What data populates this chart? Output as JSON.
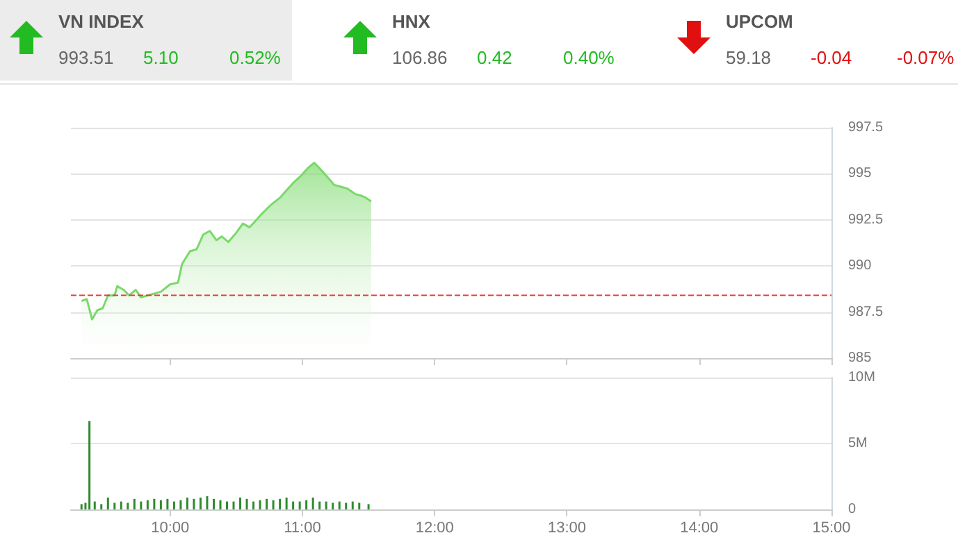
{
  "chart_data": [
    {
      "type": "other",
      "categories": [
        "VN INDEX",
        "HNX",
        "UPCOM"
      ],
      "annotations": [
        "993.51",
        "5.10",
        "0.52%",
        "106.86",
        "0.42",
        "0.40%",
        "59.18",
        "-0.04",
        "-0.07%"
      ]
    },
    {
      "type": "area",
      "x": [
        9.33,
        9.37,
        9.41,
        9.45,
        9.49,
        9.53,
        9.58,
        9.6,
        9.65,
        9.69,
        9.74,
        9.78,
        9.83,
        9.93,
        10.0,
        10.06,
        10.09,
        10.15,
        10.2,
        10.25,
        10.3,
        10.35,
        10.39,
        10.44,
        10.5,
        10.55,
        10.6,
        10.64,
        10.69,
        10.76,
        10.83,
        10.88,
        10.93,
        10.99,
        11.04,
        11.09,
        11.13,
        11.18,
        11.24,
        11.29,
        11.34,
        11.4,
        11.45,
        11.48,
        11.52
      ],
      "series": [
        {
          "color": "#7ad96a",
          "values": [
            988.1,
            988.2,
            987.1,
            987.6,
            987.7,
            988.4,
            988.4,
            988.9,
            988.7,
            988.4,
            988.7,
            988.3,
            988.4,
            988.6,
            989.0,
            989.1,
            990.1,
            990.8,
            990.9,
            991.7,
            991.9,
            991.4,
            991.6,
            991.3,
            991.8,
            992.3,
            992.1,
            992.4,
            992.8,
            993.3,
            993.7,
            994.1,
            994.5,
            994.9,
            995.3,
            995.6,
            995.3,
            994.9,
            994.4,
            994.3,
            994.2,
            993.9,
            993.8,
            993.7,
            993.5
          ]
        }
      ],
      "xlim": [
        9.25,
        15
      ],
      "xticks": [
        {
          "value": 10,
          "label": null
        },
        {
          "value": 11,
          "label": null
        },
        {
          "value": 12,
          "label": null
        },
        {
          "value": 13,
          "label": null
        },
        {
          "value": 14,
          "label": null
        },
        {
          "value": 15,
          "label": null
        }
      ],
      "ylim": [
        985,
        997.5
      ],
      "yticks": [
        985,
        987.5,
        990,
        992.5,
        995,
        997.5
      ],
      "ref_lines": [
        {
          "axis": "y",
          "value": 988.41,
          "color": "#e53935",
          "line_style": "dashed"
        }
      ],
      "grid": "y",
      "tick_labels": "y"
    },
    {
      "type": "bar",
      "x": [
        9.33,
        9.36,
        9.39,
        9.43,
        9.48,
        9.53,
        9.58,
        9.63,
        9.68,
        9.73,
        9.78,
        9.83,
        9.88,
        9.93,
        9.98,
        10.03,
        10.08,
        10.13,
        10.18,
        10.23,
        10.28,
        10.33,
        10.38,
        10.43,
        10.48,
        10.53,
        10.58,
        10.63,
        10.68,
        10.73,
        10.78,
        10.83,
        10.88,
        10.93,
        10.98,
        11.03,
        11.08,
        11.13,
        11.18,
        11.23,
        11.28,
        11.33,
        11.38,
        11.43,
        11.5
      ],
      "series": [
        {
          "color": "#2e8b2e",
          "values": [
            0.4,
            0.5,
            6.7,
            0.6,
            0.4,
            0.9,
            0.5,
            0.6,
            0.5,
            0.8,
            0.6,
            0.7,
            0.8,
            0.7,
            0.8,
            0.6,
            0.7,
            0.9,
            0.8,
            0.9,
            1.0,
            0.8,
            0.7,
            0.6,
            0.6,
            0.9,
            0.8,
            0.6,
            0.7,
            0.8,
            0.7,
            0.8,
            0.9,
            0.6,
            0.6,
            0.7,
            0.9,
            0.6,
            0.6,
            0.5,
            0.6,
            0.5,
            0.6,
            0.5,
            0.4
          ]
        }
      ],
      "xlim": [
        9.25,
        15
      ],
      "xticks": [
        {
          "value": 10,
          "label": "10:00"
        },
        {
          "value": 11,
          "label": "11:00"
        },
        {
          "value": 12,
          "label": "12:00"
        },
        {
          "value": 13,
          "label": "13:00"
        },
        {
          "value": 14,
          "label": "14:00"
        },
        {
          "value": 15,
          "label": "15:00"
        }
      ],
      "ylim": [
        0,
        10
      ],
      "yticks": [
        {
          "value": 0,
          "label": "0"
        },
        {
          "value": 5,
          "label": "5M"
        },
        {
          "value": 10,
          "label": "10M"
        }
      ],
      "grid": "y"
    }
  ]
}
